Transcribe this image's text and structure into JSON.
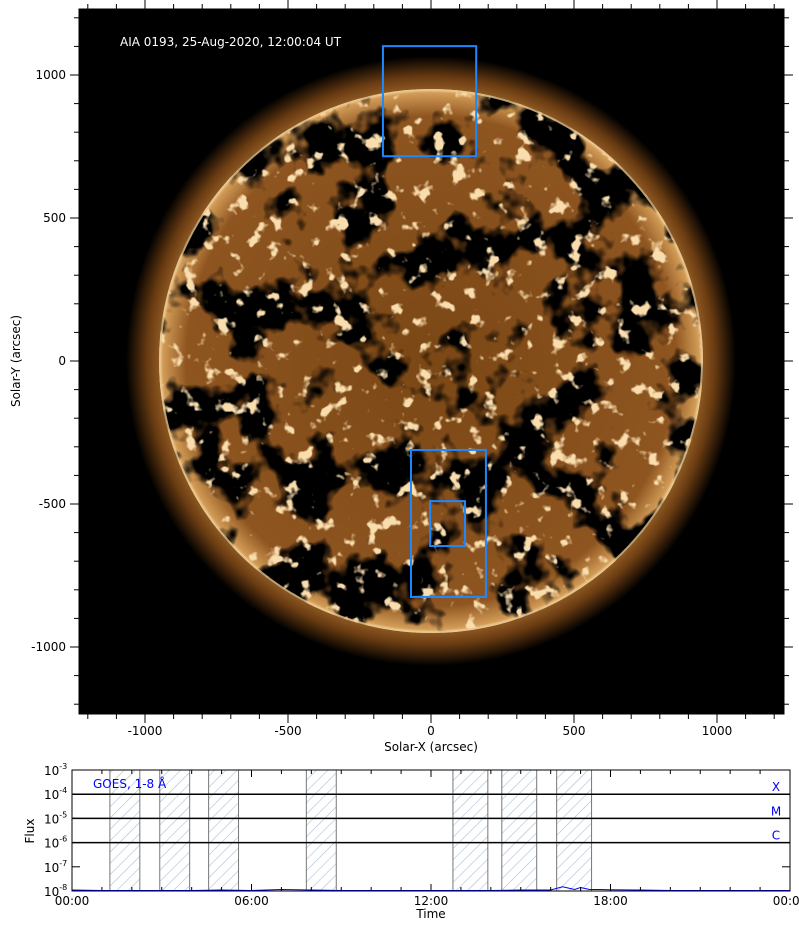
{
  "colors": {
    "roi_box": "#1e88ff",
    "goes_line": "#0000ff",
    "shade": "#a9bfdc",
    "sun": "#b0702a"
  },
  "chart_data": [
    {
      "type": "image",
      "title": "AIA 0193, 25-Aug-2020, 12:00:04 UT",
      "xlabel": "Solar-X (arcsec)",
      "ylabel": "Solar-Y (arcsec)",
      "xlim": [
        -1230,
        1230
      ],
      "ylim": [
        -1230,
        1230
      ],
      "xticks": [
        -1000,
        -500,
        0,
        500,
        1000
      ],
      "xtick_labels": [
        "-1000",
        "-500",
        "0",
        "500",
        "1000"
      ],
      "yticks": [
        1000,
        500,
        0,
        -500,
        -1000
      ],
      "ytick_labels": [
        "1000",
        "500",
        "0",
        "-500",
        "-1000"
      ],
      "minor_tick_step": 100,
      "solar_radius_arcsec": 950,
      "boxes": [
        {
          "x": [
            -168,
            158
          ],
          "y": [
            716,
            1101
          ]
        },
        {
          "x": [
            -70,
            192
          ],
          "y": [
            -825,
            -311
          ]
        },
        {
          "x": [
            -3,
            119
          ],
          "y": [
            -647,
            -490
          ]
        }
      ]
    },
    {
      "type": "line",
      "legend": "GOES, 1-8 Å",
      "xlabel": "Time",
      "ylabel": "Flux",
      "xlim_hours": [
        0,
        24
      ],
      "xticks": [
        "00:00",
        "06:00",
        "12:00",
        "18:00",
        "00:00"
      ],
      "y_scale": "log",
      "ylim": [
        1e-08,
        0.001
      ],
      "ytick_exponents": [
        "-3",
        "-4",
        "-5",
        "-6",
        "-7",
        "-8"
      ],
      "class_levels": [
        {
          "label": "X",
          "value": 0.0001
        },
        {
          "label": "M",
          "value": 1e-05
        },
        {
          "label": "C",
          "value": 1e-06
        }
      ],
      "shaded_intervals": [
        [
          "01:16",
          "02:16"
        ],
        [
          "02:56",
          "03:56"
        ],
        [
          "04:34",
          "05:34"
        ],
        [
          "07:50",
          "08:50"
        ],
        [
          "12:44",
          "13:54"
        ],
        [
          "14:22",
          "15:32"
        ],
        [
          "16:12",
          "17:22"
        ]
      ],
      "series": {
        "hours": [
          0,
          1,
          2,
          3,
          4,
          5,
          6,
          7,
          8,
          9,
          10,
          11,
          12,
          13,
          14,
          15,
          16,
          16.4,
          16.8,
          17,
          17.3,
          17.6,
          18,
          19,
          20,
          21,
          22,
          23,
          24
        ],
        "flux": [
          1.1e-08,
          1.05e-08,
          1.05e-08,
          1.05e-08,
          1.05e-08,
          1.1e-08,
          1.05e-08,
          1.15e-08,
          1.1e-08,
          1.05e-08,
          1.05e-08,
          1.05e-08,
          1.05e-08,
          1.05e-08,
          1.05e-08,
          1.1e-08,
          1.1e-08,
          1.5e-08,
          1.15e-08,
          1.4e-08,
          1.15e-08,
          1.15e-08,
          1.12e-08,
          1.1e-08,
          1.05e-08,
          1.05e-08,
          1.05e-08,
          1.05e-08,
          1.05e-08
        ]
      }
    }
  ]
}
